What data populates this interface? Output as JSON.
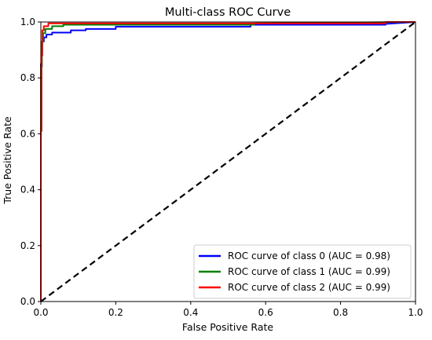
{
  "chart_data": {
    "type": "line",
    "title": "Multi-class ROC Curve",
    "xlabel": "False Positive Rate",
    "ylabel": "True Positive Rate",
    "xlim": [
      0.0,
      1.0
    ],
    "ylim": [
      0.0,
      1.0
    ],
    "xticks": [
      "0.0",
      "0.2",
      "0.4",
      "0.6",
      "0.8",
      "1.0"
    ],
    "yticks": [
      "0.0",
      "0.2",
      "0.4",
      "0.6",
      "0.8",
      "1.0"
    ],
    "grid": false,
    "legend_position": "lower right",
    "series": [
      {
        "name": "ROC curve of class 0 (AUC = 0.98)",
        "color": "#0000ff",
        "x": [
          0.0,
          0.0,
          0.002,
          0.002,
          0.004,
          0.004,
          0.008,
          0.008,
          0.015,
          0.015,
          0.03,
          0.03,
          0.08,
          0.08,
          0.12,
          0.12,
          0.2,
          0.2,
          0.56,
          0.56,
          0.92,
          0.92,
          1.0
        ],
        "y": [
          0.0,
          0.85,
          0.85,
          0.9,
          0.9,
          0.93,
          0.93,
          0.945,
          0.945,
          0.955,
          0.955,
          0.962,
          0.962,
          0.97,
          0.97,
          0.975,
          0.975,
          0.983,
          0.983,
          0.99,
          0.99,
          0.993,
          1.0
        ]
      },
      {
        "name": "ROC curve of class 1 (AUC = 0.99)",
        "color": "#008000",
        "x": [
          0.0,
          0.0,
          0.003,
          0.003,
          0.006,
          0.006,
          0.012,
          0.012,
          0.03,
          0.03,
          0.06,
          0.06,
          0.57,
          0.57,
          1.0
        ],
        "y": [
          0.0,
          0.84,
          0.84,
          0.93,
          0.93,
          0.96,
          0.96,
          0.975,
          0.975,
          0.985,
          0.985,
          0.99,
          0.99,
          0.995,
          1.0
        ]
      },
      {
        "name": "ROC curve of class 2 (AUC = 0.99)",
        "color": "#ff0000",
        "x": [
          0.0,
          0.0,
          0.002,
          0.002,
          0.004,
          0.004,
          0.008,
          0.008,
          0.02,
          0.02,
          0.92,
          0.92,
          1.0
        ],
        "y": [
          0.0,
          0.61,
          0.61,
          0.88,
          0.88,
          0.97,
          0.97,
          0.985,
          0.985,
          0.995,
          0.995,
          1.0,
          1.0
        ]
      },
      {
        "name": "",
        "color": "#000000",
        "dashed": true,
        "x": [
          0.0,
          1.0
        ],
        "y": [
          0.0,
          1.0
        ]
      }
    ]
  }
}
